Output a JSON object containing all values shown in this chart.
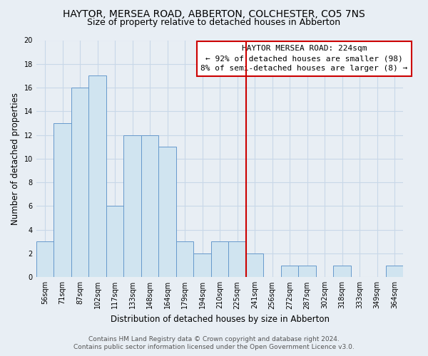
{
  "title": "HAYTOR, MERSEA ROAD, ABBERTON, COLCHESTER, CO5 7NS",
  "subtitle": "Size of property relative to detached houses in Abberton",
  "xlabel": "Distribution of detached houses by size in Abberton",
  "ylabel": "Number of detached properties",
  "categories": [
    "56sqm",
    "71sqm",
    "87sqm",
    "102sqm",
    "117sqm",
    "133sqm",
    "148sqm",
    "164sqm",
    "179sqm",
    "194sqm",
    "210sqm",
    "225sqm",
    "241sqm",
    "256sqm",
    "272sqm",
    "287sqm",
    "302sqm",
    "318sqm",
    "333sqm",
    "349sqm",
    "364sqm"
  ],
  "values": [
    3,
    13,
    16,
    17,
    6,
    12,
    12,
    11,
    3,
    2,
    3,
    3,
    2,
    0,
    1,
    1,
    0,
    1,
    0,
    0,
    1
  ],
  "bar_color": "#d0e4f0",
  "bar_edge_color": "#6699cc",
  "vline_x": 11.5,
  "vline_color": "#cc0000",
  "ylim": [
    0,
    20
  ],
  "yticks": [
    0,
    2,
    4,
    6,
    8,
    10,
    12,
    14,
    16,
    18,
    20
  ],
  "annotation_title": "HAYTOR MERSEA ROAD: 224sqm",
  "annotation_line1": "← 92% of detached houses are smaller (98)",
  "annotation_line2": "8% of semi-detached houses are larger (8) →",
  "footer_line1": "Contains HM Land Registry data © Crown copyright and database right 2024.",
  "footer_line2": "Contains public sector information licensed under the Open Government Licence v3.0.",
  "background_color": "#e8eef4",
  "grid_color": "#c8d8e8",
  "title_fontsize": 10,
  "subtitle_fontsize": 9,
  "axis_label_fontsize": 8.5,
  "tick_fontsize": 7,
  "footer_fontsize": 6.5,
  "annotation_fontsize": 8
}
